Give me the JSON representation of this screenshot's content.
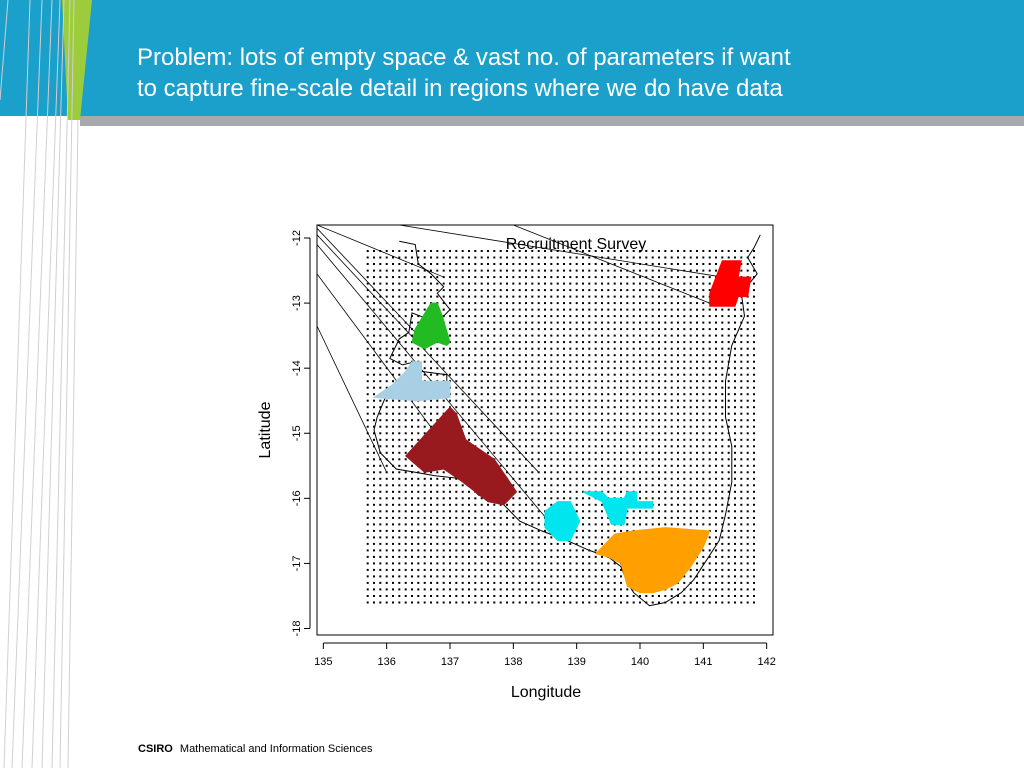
{
  "slide": {
    "title_line1": "Problem: lots of empty space & vast no. of parameters if want",
    "title_line2": "to capture fine-scale detail in regions where we do have data",
    "footer_brand": "CSIRO",
    "footer_text": "Mathematical and Information Sciences",
    "colors": {
      "header": "#1b9fcb",
      "accent_green": "#9ccb3b",
      "rule": "#a7a9ac"
    }
  },
  "chart_data": {
    "type": "scatter",
    "title": "Recruitment Survey",
    "xlabel": "Longitude",
    "ylabel": "Latitude",
    "xlim": [
      134.9,
      142.1
    ],
    "ylim": [
      -18.1,
      -11.8
    ],
    "xticks": [
      135,
      136,
      137,
      138,
      139,
      140,
      141,
      142
    ],
    "yticks": [
      -12,
      -13,
      -14,
      -15,
      -16,
      -17,
      -18
    ],
    "grid": false,
    "grid_points": {
      "lon_range": [
        135.65,
        141.8
      ],
      "lat_range": [
        -17.6,
        -12.2
      ],
      "spacing": 0.1
    },
    "survey_regions": [
      {
        "name": "red",
        "color": "#ff0000",
        "lon": [
          141.3,
          141.6,
          141.55,
          141.75,
          141.7,
          141.55,
          141.5,
          141.1,
          141.1,
          141.3
        ],
        "lat": [
          -12.35,
          -12.35,
          -12.6,
          -12.6,
          -12.9,
          -12.9,
          -13.05,
          -13.05,
          -12.85,
          -12.35
        ]
      },
      {
        "name": "green",
        "color": "#22bb22",
        "lon": [
          136.7,
          136.8,
          136.88,
          137.0,
          136.95,
          136.8,
          136.6,
          136.4,
          136.45,
          136.7
        ],
        "lat": [
          -13.0,
          -13.0,
          -13.2,
          -13.6,
          -13.65,
          -13.6,
          -13.7,
          -13.6,
          -13.4,
          -13.0
        ]
      },
      {
        "name": "light-blue",
        "color": "#a8cfe3",
        "lon": [
          136.4,
          136.55,
          136.55,
          137.0,
          137.0,
          136.5,
          135.8,
          136.1,
          136.3,
          136.4
        ],
        "lat": [
          -13.9,
          -13.9,
          -14.2,
          -14.2,
          -14.45,
          -14.5,
          -14.45,
          -14.25,
          -14.05,
          -13.9
        ]
      },
      {
        "name": "dark-red",
        "color": "#991a1e",
        "lon": [
          137.0,
          137.1,
          137.25,
          137.7,
          138.05,
          137.85,
          137.6,
          137.2,
          136.9,
          136.6,
          136.3,
          137.0
        ],
        "lat": [
          -14.6,
          -14.7,
          -15.1,
          -15.4,
          -15.9,
          -16.1,
          -16.05,
          -15.75,
          -15.55,
          -15.6,
          -15.35,
          -14.6
        ]
      },
      {
        "name": "cyan-west",
        "color": "#00e5ee",
        "lon": [
          138.7,
          138.9,
          139.05,
          138.9,
          138.7,
          138.5,
          138.5,
          138.7
        ],
        "lat": [
          -16.05,
          -16.05,
          -16.35,
          -16.65,
          -16.65,
          -16.45,
          -16.2,
          -16.05
        ]
      },
      {
        "name": "cyan-east",
        "color": "#00e5ee",
        "lon": [
          139.1,
          139.4,
          139.5,
          139.75,
          139.8,
          139.95,
          139.95,
          140.2,
          140.2,
          139.8,
          139.75,
          139.55,
          139.4,
          139.1
        ],
        "lat": [
          -15.9,
          -15.9,
          -16.0,
          -16.0,
          -15.9,
          -15.9,
          -16.05,
          -16.05,
          -16.15,
          -16.15,
          -16.4,
          -16.4,
          -16.05,
          -15.9
        ]
      },
      {
        "name": "orange",
        "color": "#ffa000",
        "lon": [
          139.6,
          139.9,
          140.4,
          141.1,
          141.0,
          140.8,
          140.6,
          140.4,
          140.2,
          140.0,
          139.8,
          139.7,
          139.5,
          139.3,
          139.6
        ],
        "lat": [
          -16.55,
          -16.5,
          -16.45,
          -16.5,
          -16.75,
          -17.05,
          -17.3,
          -17.4,
          -17.45,
          -17.45,
          -17.35,
          -17.0,
          -16.9,
          -16.85,
          -16.55
        ]
      }
    ],
    "coastline": {
      "name": "Gulf of Carpentaria coastline",
      "lon": [
        136.2,
        136.45,
        136.5,
        136.7,
        136.9,
        136.8,
        137.0,
        136.8,
        136.4,
        136.35,
        136.2,
        136.05,
        136.25,
        136.45,
        136.55,
        136.95,
        136.95,
        136.55,
        136.45,
        136.0,
        135.85,
        135.8,
        135.9,
        136.15,
        136.45,
        136.75,
        137.2,
        137.45,
        137.85,
        138.1,
        138.45,
        138.85,
        139.2,
        139.5,
        139.7,
        139.8,
        139.9,
        140.15,
        140.4,
        140.65,
        140.85,
        141.05,
        141.25,
        141.35,
        141.45,
        141.45,
        141.35,
        141.35,
        141.45,
        141.65,
        141.6,
        141.85,
        141.7,
        141.8,
        141.9
      ],
      "lat": [
        -12.05,
        -12.1,
        -12.4,
        -12.55,
        -12.75,
        -12.85,
        -13.1,
        -13.3,
        -13.15,
        -13.45,
        -13.55,
        -13.85,
        -13.95,
        -13.9,
        -14.05,
        -14.1,
        -14.3,
        -14.35,
        -14.5,
        -14.4,
        -14.75,
        -14.95,
        -15.3,
        -15.55,
        -15.6,
        -15.65,
        -15.7,
        -15.95,
        -16.1,
        -16.35,
        -16.5,
        -16.65,
        -16.8,
        -16.9,
        -17.05,
        -17.3,
        -17.45,
        -17.65,
        -17.6,
        -17.45,
        -17.25,
        -16.95,
        -16.65,
        -16.25,
        -15.75,
        -15.2,
        -14.75,
        -14.2,
        -13.65,
        -13.2,
        -12.85,
        -12.55,
        -12.3,
        -12.15,
        -11.95
      ]
    },
    "reference_lines": [
      {
        "lon": [
          134.9,
          136.9
        ],
        "lat": [
          -11.8,
          -12.6
        ]
      },
      {
        "lon": [
          134.9,
          136.5
        ],
        "lat": [
          -11.85,
          -13.5
        ]
      },
      {
        "lon": [
          134.9,
          138.4
        ],
        "lat": [
          -11.95,
          -15.6
        ]
      },
      {
        "lon": [
          134.9,
          138.6
        ],
        "lat": [
          -12.1,
          -16.4
        ]
      },
      {
        "lon": [
          134.9,
          137.0
        ],
        "lat": [
          -12.55,
          -15.3
        ]
      },
      {
        "lon": [
          134.9,
          136.0
        ],
        "lat": [
          -13.35,
          -15.6
        ]
      },
      {
        "lon": [
          136.2,
          141.3
        ],
        "lat": [
          -11.8,
          -12.6
        ]
      },
      {
        "lon": [
          138.0,
          141.1
        ],
        "lat": [
          -11.8,
          -13.0
        ]
      }
    ]
  }
}
